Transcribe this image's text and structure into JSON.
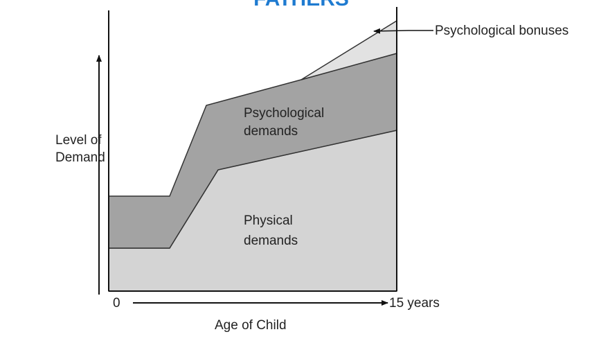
{
  "title": "FATHERS",
  "y_axis_label": [
    "Level of",
    "Demand"
  ],
  "x_axis_label": "Age of Child",
  "x_start": "0",
  "x_end": "15 years",
  "regions": {
    "physical": [
      "Physical",
      "demands"
    ],
    "psychological": [
      "Psychological",
      "demands"
    ],
    "bonuses": "Psychological bonuses"
  }
}
